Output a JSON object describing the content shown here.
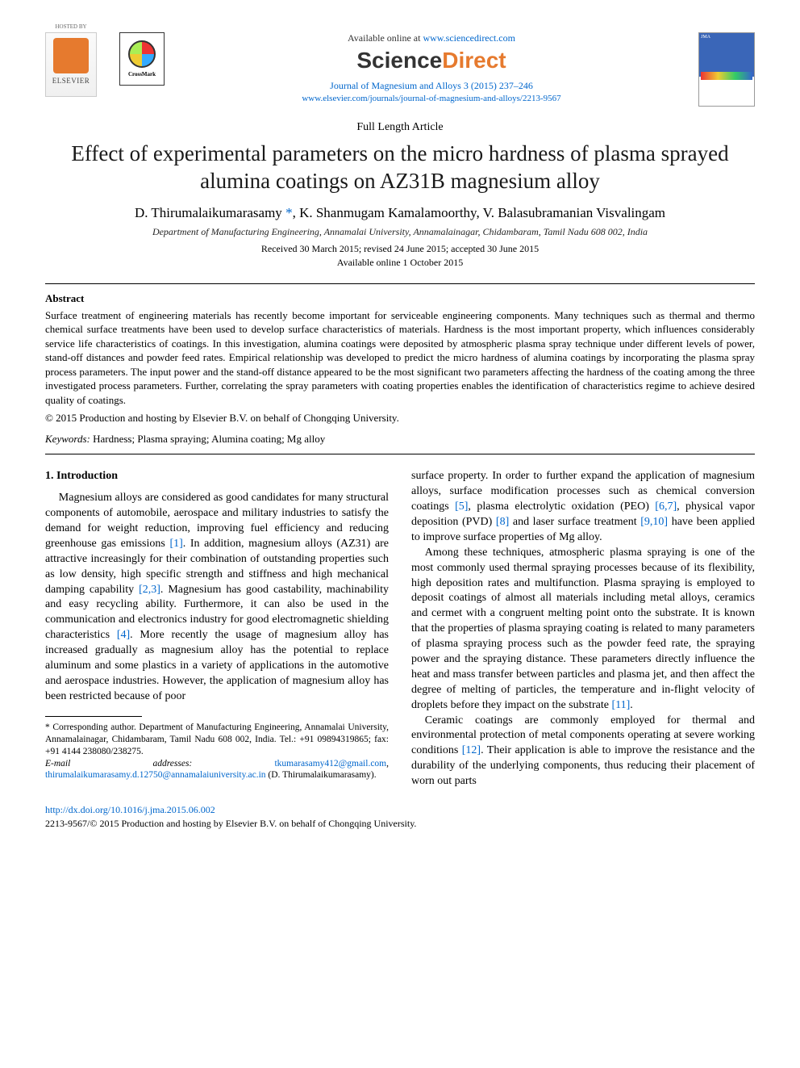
{
  "header": {
    "hosted_by": "HOSTED BY",
    "elsevier": "ELSEVIER",
    "crossmark": "CrossMark",
    "available_prefix": "Available online at ",
    "available_url": "www.sciencedirect.com",
    "sd_logo_left": "Science",
    "sd_logo_right": "Direct",
    "journal_ref": "Journal of Magnesium and Alloys 3 (2015) 237–246",
    "journal_link": "www.elsevier.com/journals/journal-of-magnesium-and-alloys/2213-9567",
    "cover_label": "JMA"
  },
  "article": {
    "type": "Full Length Article",
    "title": "Effect of experimental parameters on the micro hardness of plasma sprayed alumina coatings on AZ31B magnesium alloy",
    "authors_html": "D. Thirumalaikumarasamy *, K. Shanmugam Kamalamoorthy, V. Balasubramanian Visvalingam",
    "author1": "D. Thirumalaikumarasamy",
    "corr_mark": "*",
    "author2": ", K. Shanmugam Kamalamoorthy, V. Balasubramanian Visvalingam",
    "affiliation": "Department of Manufacturing Engineering, Annamalai University, Annamalainagar, Chidambaram, Tamil Nadu 608 002, India",
    "dates": "Received 30 March 2015; revised 24 June 2015; accepted 30 June 2015",
    "available": "Available online 1 October 2015"
  },
  "abstract": {
    "heading": "Abstract",
    "body": "Surface treatment of engineering materials has recently become important for serviceable engineering components. Many techniques such as thermal and thermo chemical surface treatments have been used to develop surface characteristics of materials. Hardness is the most important property, which influences considerably service life characteristics of coatings. In this investigation, alumina coatings were deposited by atmospheric plasma spray technique under different levels of power, stand-off distances and powder feed rates. Empirical relationship was developed to predict the micro hardness of alumina coatings by incorporating the plasma spray process parameters. The input power and the stand-off distance appeared to be the most significant two parameters affecting the hardness of the coating among the three investigated process parameters. Further, correlating the spray parameters with coating properties enables the identification of characteristics regime to achieve desired quality of coatings.",
    "copyright": "© 2015 Production and hosting by Elsevier B.V. on behalf of Chongqing University.",
    "keywords_label": "Keywords:",
    "keywords": " Hardness; Plasma spraying; Alumina coating; Mg alloy"
  },
  "body": {
    "section_num": "1.",
    "section_title": " Introduction",
    "left_p1a": "Magnesium alloys are considered as good candidates for many structural components of automobile, aerospace and military industries to satisfy the demand for weight reduction, improving fuel efficiency and reducing greenhouse gas emissions ",
    "ref1": "[1]",
    "left_p1b": ". In addition, magnesium alloys (AZ31) are attractive increasingly for their combination of outstanding properties such as low density, high specific strength and stiffness and high mechanical damping capability ",
    "ref23": "[2,3]",
    "left_p1c": ". Magnesium has good castability, machinability and easy recycling ability. Furthermore, it can also be used in the communication and electronics industry for good electromagnetic shielding characteristics ",
    "ref4": "[4]",
    "left_p1d": ". More recently the usage of magnesium alloy has increased gradually as magnesium alloy has the potential to replace aluminum and some plastics in a variety of applications in the automotive and aerospace industries. However, the application of magnesium alloy has been restricted because of poor",
    "right_p1a": "surface property. In order to further expand the application of magnesium alloys, surface modification processes such as chemical conversion coatings ",
    "ref5": "[5]",
    "right_p1b": ", plasma electrolytic oxidation (PEO) ",
    "ref67": "[6,7]",
    "right_p1c": ", physical vapor deposition (PVD) ",
    "ref8": "[8]",
    "right_p1d": " and laser surface treatment ",
    "ref910": "[9,10]",
    "right_p1e": " have been applied to improve surface properties of Mg alloy.",
    "right_p2a": "Among these techniques, atmospheric plasma spraying is one of the most commonly used thermal spraying processes because of its flexibility, high deposition rates and multifunction. Plasma spraying is employed to deposit coatings of almost all materials including metal alloys, ceramics and cermet with a congruent melting point onto the substrate. It is known that the properties of plasma spraying coating is related to many parameters of plasma spraying process such as the powder feed rate, the spraying power and the spraying distance. These parameters directly influence the heat and mass transfer between particles and plasma jet, and then affect the degree of melting of particles, the temperature and in-flight velocity of droplets before they impact on the substrate ",
    "ref11": "[11]",
    "right_p2b": ".",
    "right_p3a": "Ceramic coatings are commonly employed for thermal and environmental protection of metal components operating at severe working conditions ",
    "ref12": "[12]",
    "right_p3b": ". Their application is able to improve the resistance and the durability of the underlying components, thus reducing their placement of worn out parts"
  },
  "footnote": {
    "corr": "* Corresponding author. Department of Manufacturing Engineering, Annamalai University, Annamalainagar, Chidambaram, Tamil Nadu 608 002, India. Tel.: +91 09894319865; fax: +91 4144 238080/238275.",
    "email_label": "E-mail addresses:",
    "email1": "tkumarasamy412@gmail.com",
    "email_sep": ", ",
    "email2": "thirumalaikumarasamy.d.12750@annamalaiuniversity.ac.in",
    "email_tail": " (D. Thirumalaikumarasamy)."
  },
  "footer": {
    "doi": "http://dx.doi.org/10.1016/j.jma.2015.06.002",
    "issn": "2213-9567/© 2015 Production and hosting by Elsevier B.V. on behalf of Chongqing University."
  },
  "colors": {
    "link": "#0066cc",
    "accent": "#e67a2e",
    "text": "#000000",
    "background": "#ffffff"
  }
}
